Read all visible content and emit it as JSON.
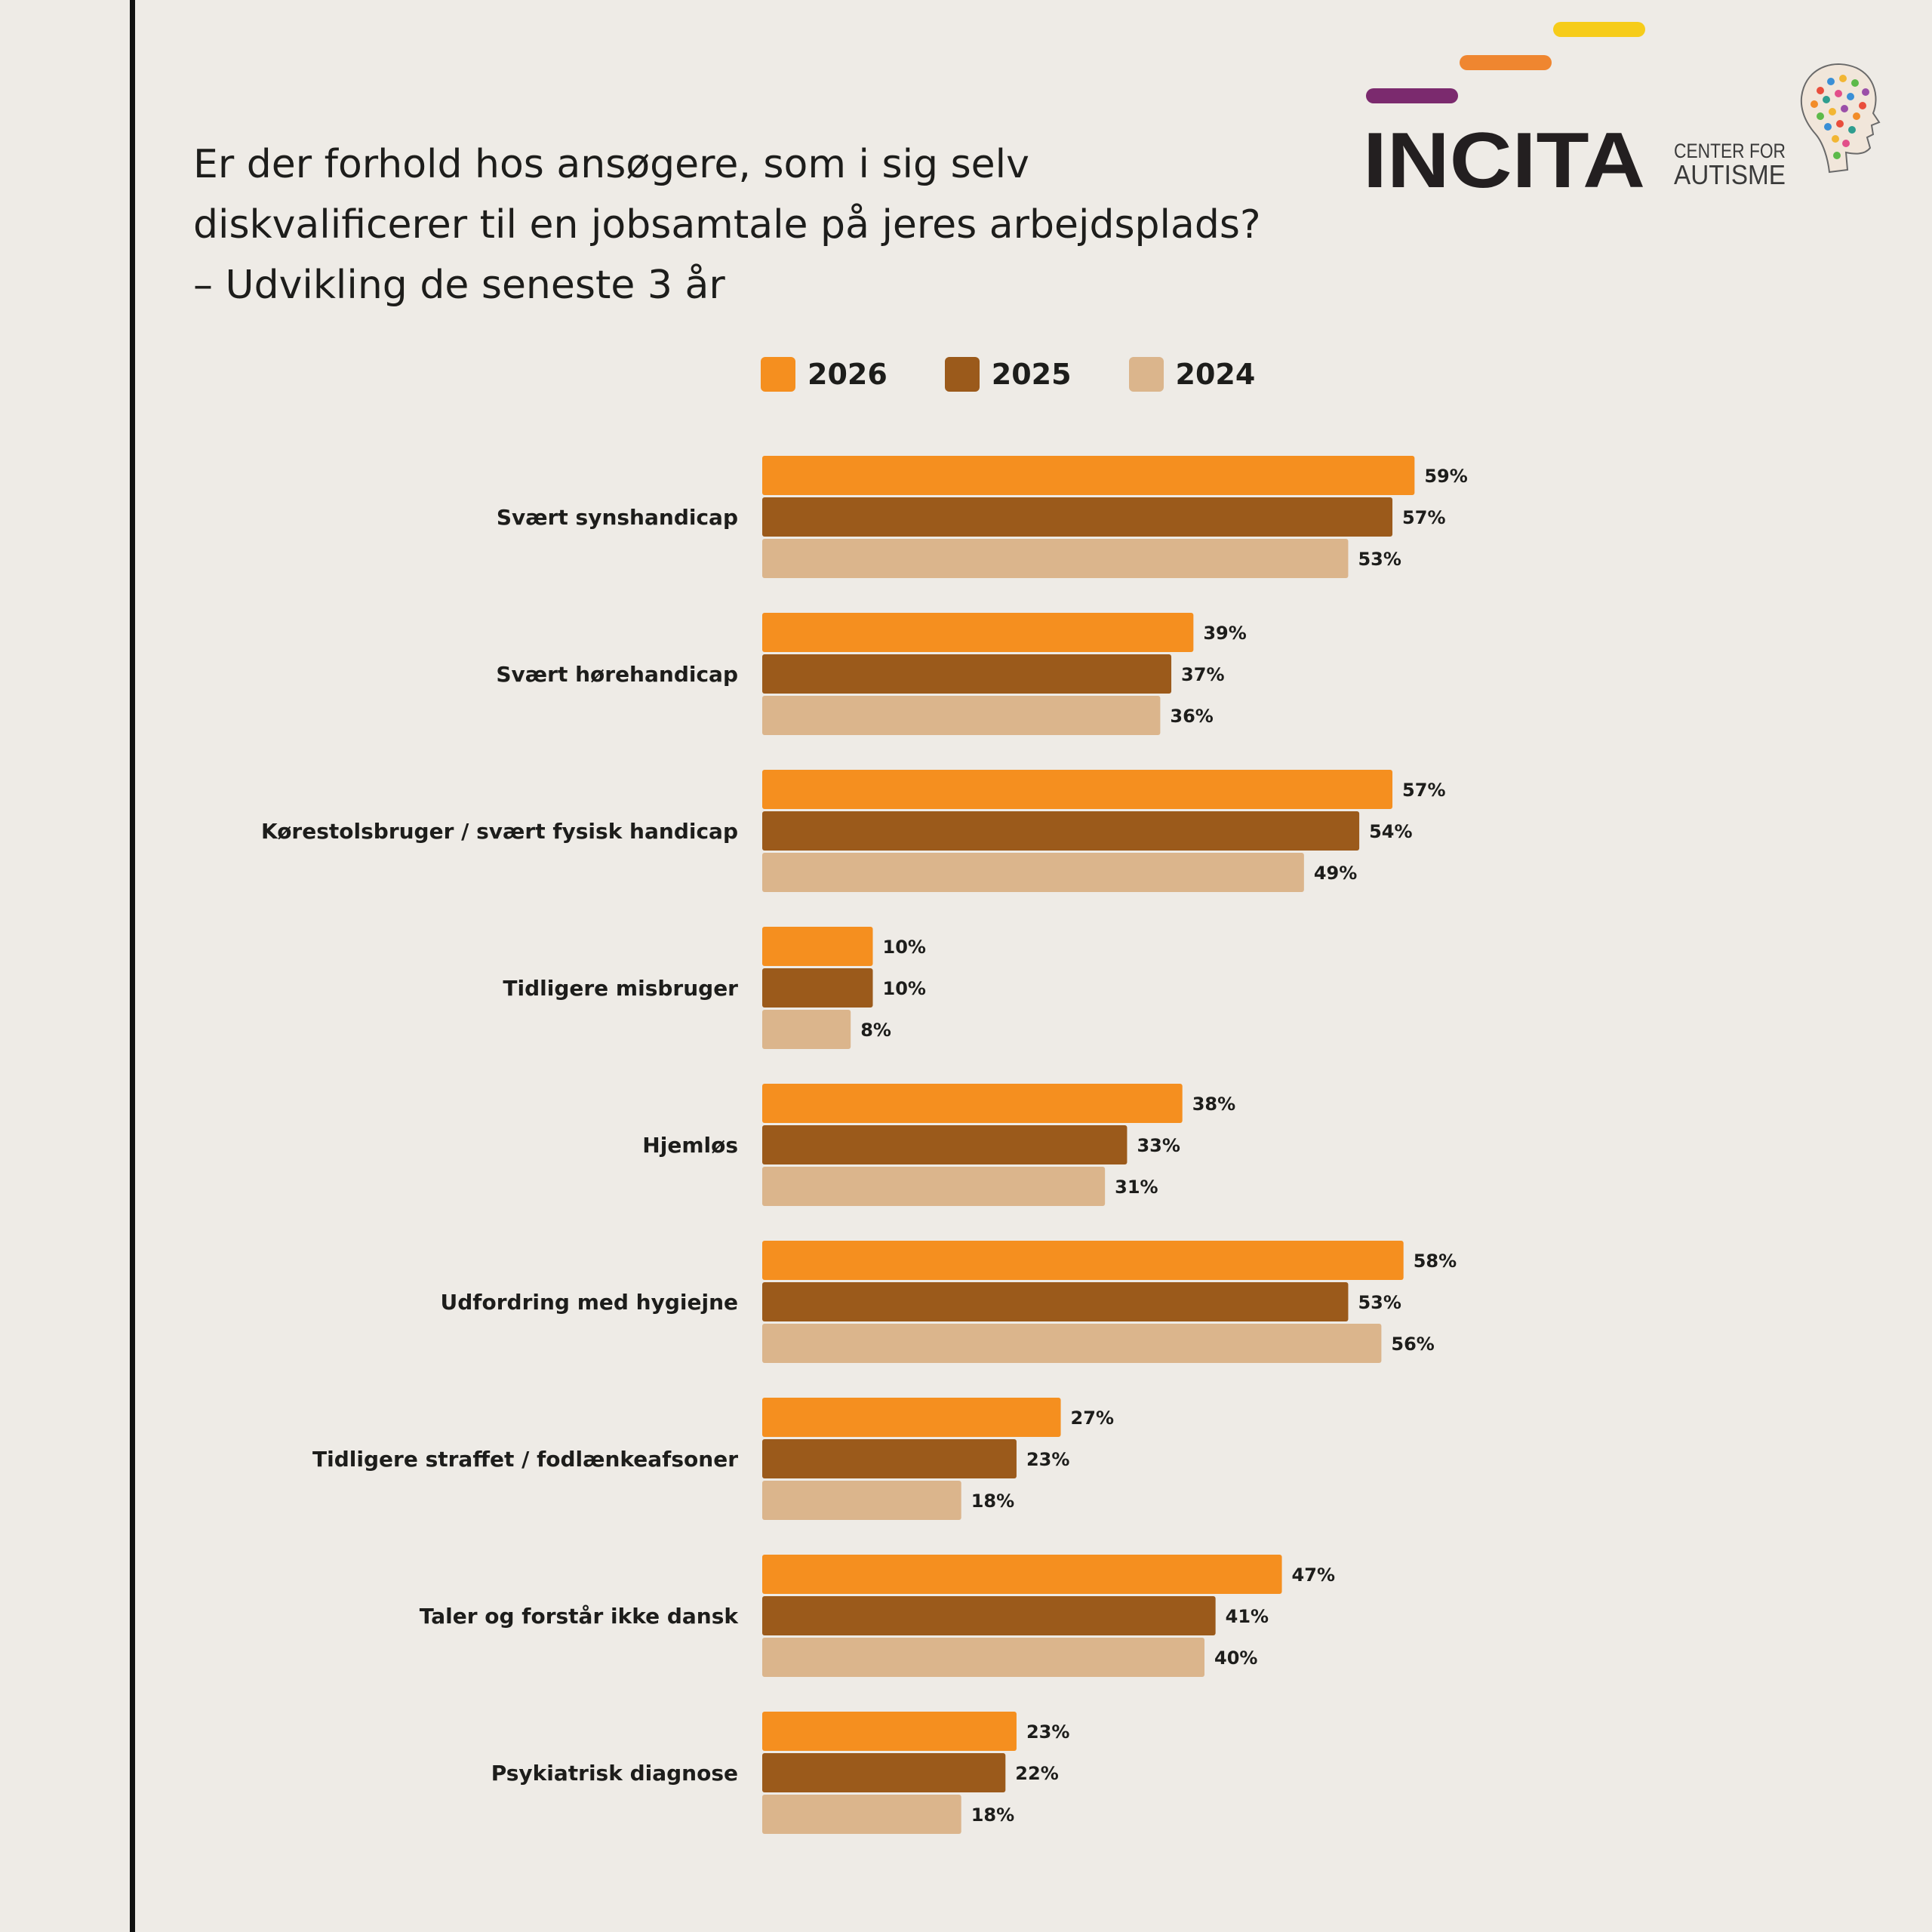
{
  "title_lines": [
    "Er der forhold hos ansøgere, som i sig selv",
    "diskvalificerer til en jobsamtale på jeres arbejdsplads?",
    "– Udvikling de seneste 3 år"
  ],
  "logo": {
    "wordmark": "INCITA",
    "tagline_top": "CENTER FOR",
    "tagline_bottom": "AUTISME",
    "stripe_colors": [
      "#7b2a6e",
      "#ef8630",
      "#f6cc1a"
    ]
  },
  "colors": {
    "s2026": "#f58f1f",
    "s2025": "#9b5a1b",
    "s2024": "#dbb58c",
    "background": "#eeebe6"
  },
  "chart_data": {
    "type": "bar",
    "orientation": "horizontal",
    "categories": [
      "Svært synshandicap",
      "Svært hørehandicap",
      "Kørestolsbruger / svært fysisk handicap",
      "Tidligere misbruger",
      "Hjemløs",
      "Udfordring med hygiejne",
      "Tidligere straffet / fodlænkeafsoner",
      "Taler og forstår ikke dansk",
      "Psykiatrisk diagnose"
    ],
    "series": [
      {
        "name": "2026",
        "color": "#f58f1f",
        "values": [
          59,
          39,
          57,
          10,
          38,
          58,
          27,
          47,
          23
        ]
      },
      {
        "name": "2025",
        "color": "#9b5a1b",
        "values": [
          57,
          37,
          54,
          10,
          33,
          53,
          23,
          41,
          22
        ]
      },
      {
        "name": "2024",
        "color": "#dbb58c",
        "values": [
          53,
          36,
          49,
          8,
          31,
          56,
          18,
          40,
          18
        ]
      }
    ],
    "value_suffix": "%",
    "legend_position": "top",
    "grid": false
  }
}
